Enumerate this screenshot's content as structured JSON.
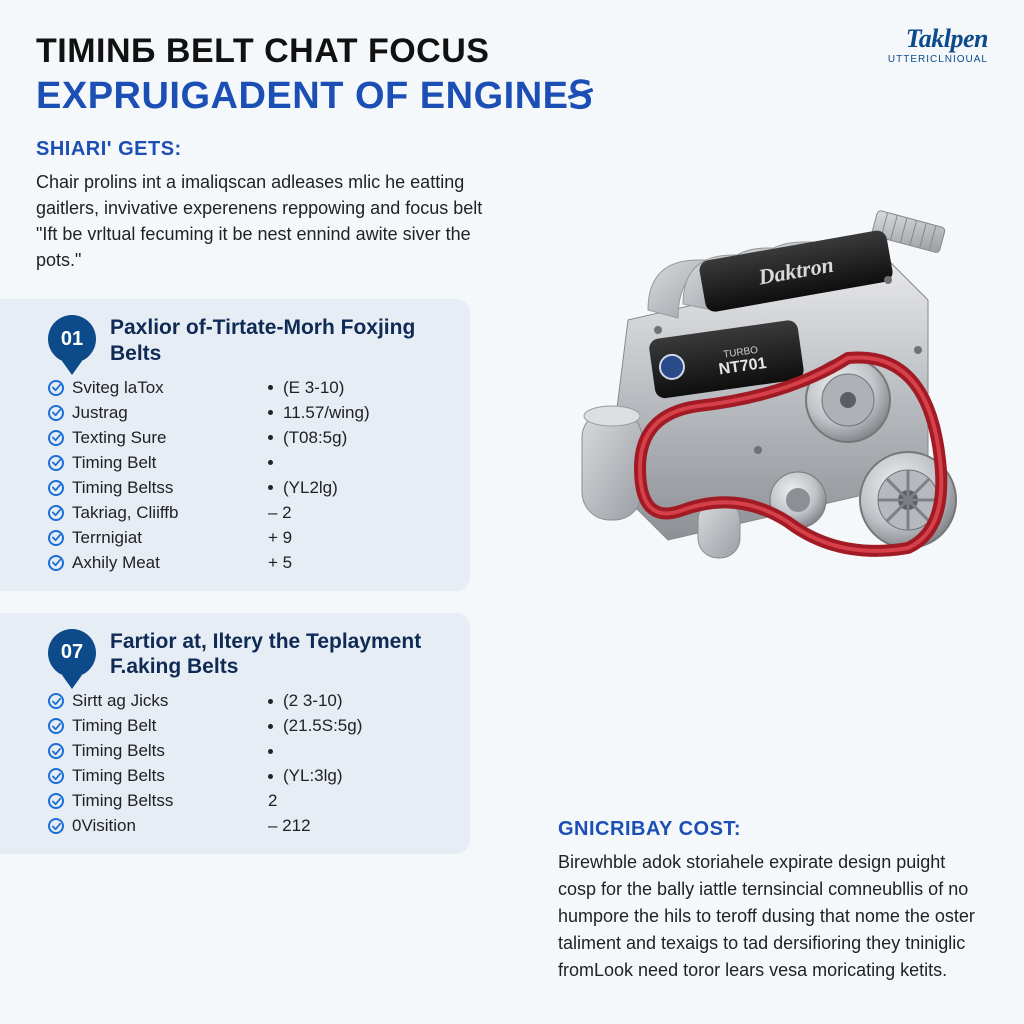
{
  "colors": {
    "page_bg": "#f5f8fa",
    "title_black": "#111111",
    "title_blue": "#1b4fb5",
    "heading_blue": "#1b4fb5",
    "card_bg": "#e6edf5",
    "badge_bg": "#0c4a8a",
    "badge_text": "#ffffff",
    "check_ring": "#1b6fd6",
    "body_text": "#222222",
    "logo_color": "#0c4a8a"
  },
  "logo": {
    "main": "Taklpen",
    "sub": "UTTERICLNIOUAL"
  },
  "title": {
    "line1": "TIMINБ BELT CHAT FOCUS",
    "line2": "EXPRUIGADENT OF ENGINEꞨ"
  },
  "intro": {
    "heading": "SHIARI' GETS:",
    "body": "Chair prolins int a imaliqscan adleases mlic he eatting gaitlers, invivative experenens reppowing and focus belt \"Ift be vrltual fecuming it be nest ennind awite siver the pots.\""
  },
  "cards": [
    {
      "badge": "01",
      "title": "Paxlior of-Tirtate-Morh Foxjing Belts",
      "items": [
        {
          "label": "Sviteg laTox",
          "value": "(E 3-10)"
        },
        {
          "label": "Justrag",
          "value": "11.57/wing)"
        },
        {
          "label": "Texting Sure",
          "value": "(T08:5g)"
        },
        {
          "label": "Timing Belt",
          "value": ""
        },
        {
          "label": "Timing Beltss",
          "value": "(YL2lg)"
        },
        {
          "label": "Takriag, Cliiffb",
          "value": "– 2",
          "nodot": true
        },
        {
          "label": "Terrnigiat",
          "value": "+ 9",
          "nodot": true
        },
        {
          "label": "Axhily Meat",
          "value": "+ 5",
          "nodot": true
        }
      ]
    },
    {
      "badge": "07",
      "title": "Fartior at, Iltery the Teplayment F.aking Belts",
      "items": [
        {
          "label": "Sirtt ag Jicks",
          "value": "(2 3-10)"
        },
        {
          "label": "Timing Belt",
          "value": "(21.5S:5g)"
        },
        {
          "label": "Timing Belts",
          "value": ""
        },
        {
          "label": "Timing Belts",
          "value": "(YL:3lg)"
        },
        {
          "label": "Timing Beltss",
          "value": "2",
          "nodot": true
        },
        {
          "label": "0Visition",
          "value": "– 212",
          "nodot": true
        }
      ]
    }
  ],
  "cost": {
    "heading": "GNICRIBAY COST:",
    "body": "Birewhble adok storiahele expirate design puight cosp for the bally iattle ternsincial comneubllis of no humpore the hils to teroff dusing that nome the oster taliment and texaigs to tad dersifioring they tniniglic fromLook need toror lears vesa moricating ketits."
  },
  "typography": {
    "title1_size": 34,
    "title2_size": 38,
    "section_h_size": 20,
    "body_size": 18,
    "card_title_size": 21,
    "list_size": 17,
    "badge_size": 20
  }
}
